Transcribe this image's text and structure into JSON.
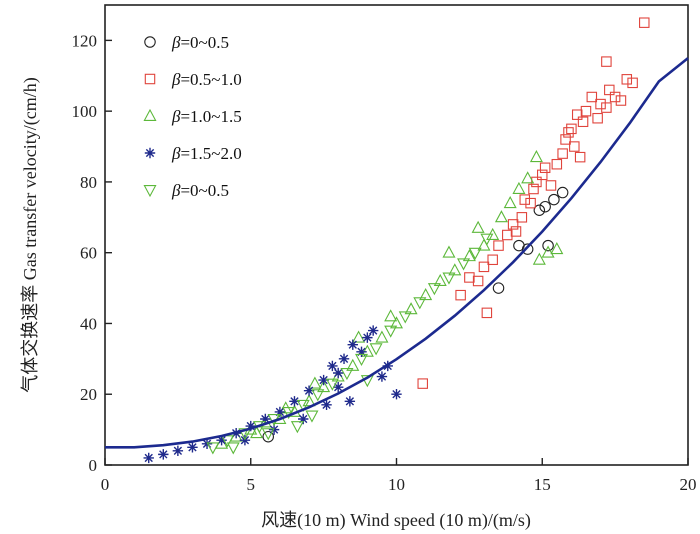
{
  "chart_data": {
    "type": "scatter",
    "title": "",
    "xlabel": "风速(10 m) Wind speed (10 m)/(m/s)",
    "ylabel": "气体交换速率 Gas transfer velocity/(cm/h)",
    "xlim": [
      0,
      20
    ],
    "ylim": [
      0,
      130
    ],
    "xticks": [
      0,
      5,
      10,
      15,
      20
    ],
    "yticks": [
      0,
      20,
      40,
      60,
      80,
      100,
      120
    ],
    "grid": false,
    "legend_position": "top-left",
    "colors": {
      "black": "#222222",
      "red": "#e0443c",
      "green": "#5cb83a",
      "blue": "#1f2a8c",
      "curve": "#1c2a8f"
    },
    "series": [
      {
        "name": "β=0~0.5",
        "beta_prefix": "β",
        "range_label": "=0~0.5",
        "marker": "circle",
        "color": "#222222",
        "points": [
          [
            5.6,
            8
          ],
          [
            13.5,
            50
          ],
          [
            14.2,
            62
          ],
          [
            14.5,
            61
          ],
          [
            14.9,
            72
          ],
          [
            15.1,
            73
          ],
          [
            15.2,
            62
          ],
          [
            15.4,
            75
          ],
          [
            15.7,
            77
          ]
        ]
      },
      {
        "name": "β=0.5~1.0",
        "beta_prefix": "β",
        "range_label": "=0.5~1.0",
        "marker": "square",
        "color": "#e0443c",
        "points": [
          [
            10.9,
            23
          ],
          [
            12.2,
            48
          ],
          [
            12.5,
            53
          ],
          [
            12.8,
            52
          ],
          [
            13.0,
            56
          ],
          [
            13.1,
            43
          ],
          [
            13.3,
            58
          ],
          [
            13.5,
            62
          ],
          [
            13.8,
            65
          ],
          [
            14.0,
            68
          ],
          [
            14.1,
            66
          ],
          [
            14.3,
            70
          ],
          [
            14.4,
            75
          ],
          [
            14.6,
            74
          ],
          [
            14.7,
            78
          ],
          [
            14.8,
            80
          ],
          [
            15.0,
            82
          ],
          [
            15.1,
            84
          ],
          [
            15.3,
            79
          ],
          [
            15.5,
            85
          ],
          [
            15.7,
            88
          ],
          [
            15.8,
            92
          ],
          [
            16.0,
            95
          ],
          [
            16.1,
            90
          ],
          [
            16.2,
            99
          ],
          [
            16.4,
            97
          ],
          [
            16.5,
            100
          ],
          [
            16.7,
            104
          ],
          [
            16.9,
            98
          ],
          [
            17.0,
            102
          ],
          [
            17.2,
            101
          ],
          [
            17.3,
            106
          ],
          [
            17.5,
            104
          ],
          [
            17.7,
            103
          ],
          [
            17.9,
            109
          ],
          [
            18.1,
            108
          ],
          [
            18.5,
            125
          ],
          [
            17.2,
            114
          ],
          [
            16.3,
            87
          ],
          [
            15.9,
            94
          ]
        ]
      },
      {
        "name": "β=1.0~1.5",
        "beta_prefix": "β",
        "range_label": "=1.0~1.5",
        "marker": "triangle-up",
        "color": "#5cb83a",
        "points": [
          [
            4.0,
            6
          ],
          [
            4.5,
            8
          ],
          [
            5.0,
            10
          ],
          [
            5.5,
            12
          ],
          [
            6.0,
            13
          ],
          [
            6.5,
            15
          ],
          [
            7.0,
            18
          ],
          [
            7.5,
            22
          ],
          [
            8.0,
            25
          ],
          [
            8.5,
            28
          ],
          [
            9.0,
            32
          ],
          [
            9.5,
            36
          ],
          [
            10.0,
            40
          ],
          [
            10.5,
            44
          ],
          [
            11.0,
            48
          ],
          [
            11.5,
            52
          ],
          [
            12.0,
            55
          ],
          [
            12.5,
            59
          ],
          [
            13.0,
            62
          ],
          [
            13.3,
            65
          ],
          [
            13.6,
            70
          ],
          [
            13.9,
            74
          ],
          [
            14.2,
            78
          ],
          [
            14.5,
            81
          ],
          [
            14.8,
            87
          ],
          [
            15.2,
            60
          ],
          [
            15.5,
            61
          ],
          [
            14.9,
            58
          ],
          [
            12.8,
            67
          ],
          [
            11.8,
            60
          ],
          [
            9.8,
            42
          ],
          [
            8.7,
            36
          ],
          [
            7.2,
            23
          ],
          [
            6.2,
            16
          ],
          [
            5.2,
            9
          ]
        ]
      },
      {
        "name": "β=1.5~2.0",
        "beta_prefix": "β",
        "range_label": "=1.5~2.0",
        "marker": "star",
        "color": "#1f2a8c",
        "points": [
          [
            1.5,
            2
          ],
          [
            2.0,
            3
          ],
          [
            2.5,
            4
          ],
          [
            3.0,
            5
          ],
          [
            3.5,
            6
          ],
          [
            4.0,
            7
          ],
          [
            4.5,
            9
          ],
          [
            5.0,
            11
          ],
          [
            5.5,
            13
          ],
          [
            6.0,
            15
          ],
          [
            6.5,
            18
          ],
          [
            7.0,
            21
          ],
          [
            7.5,
            24
          ],
          [
            7.8,
            28
          ],
          [
            8.0,
            26
          ],
          [
            8.2,
            30
          ],
          [
            8.5,
            34
          ],
          [
            8.8,
            32
          ],
          [
            9.0,
            36
          ],
          [
            9.2,
            38
          ],
          [
            9.5,
            25
          ],
          [
            8.4,
            18
          ],
          [
            8.0,
            22
          ],
          [
            7.6,
            17
          ],
          [
            10.0,
            20
          ],
          [
            9.7,
            28
          ],
          [
            6.8,
            13
          ],
          [
            5.8,
            10
          ],
          [
            4.8,
            7
          ]
        ]
      },
      {
        "name": "β=0~0.5",
        "beta_prefix": "β",
        "range_label": "=0~0.5",
        "marker": "triangle-down",
        "color": "#5cb83a",
        "points": [
          [
            3.7,
            5
          ],
          [
            4.2,
            7
          ],
          [
            4.8,
            9
          ],
          [
            5.3,
            11
          ],
          [
            5.8,
            13
          ],
          [
            6.3,
            15
          ],
          [
            6.8,
            17
          ],
          [
            7.3,
            20
          ],
          [
            7.8,
            23
          ],
          [
            8.3,
            26
          ],
          [
            8.8,
            30
          ],
          [
            9.3,
            33
          ],
          [
            9.8,
            38
          ],
          [
            10.3,
            42
          ],
          [
            10.8,
            46
          ],
          [
            11.3,
            50
          ],
          [
            11.8,
            53
          ],
          [
            12.3,
            57
          ],
          [
            12.7,
            60
          ],
          [
            13.1,
            64
          ],
          [
            6.6,
            11
          ],
          [
            7.1,
            14
          ],
          [
            5.6,
            9
          ],
          [
            4.4,
            5
          ],
          [
            9.0,
            24
          ]
        ]
      }
    ],
    "fit_curve": {
      "type": "line",
      "x": [
        0,
        1,
        2,
        3,
        4,
        5,
        6,
        7,
        8,
        9,
        10,
        11,
        12,
        13,
        14,
        15,
        16,
        17,
        18,
        19,
        20
      ],
      "y": [
        5,
        5,
        5.6,
        6.6,
        8.2,
        10.3,
        13,
        16.3,
        20.2,
        24.7,
        29.9,
        35.7,
        42.2,
        49.4,
        57.3,
        66.0,
        75.4,
        85.6,
        96.6,
        108.4,
        115
      ]
    }
  }
}
